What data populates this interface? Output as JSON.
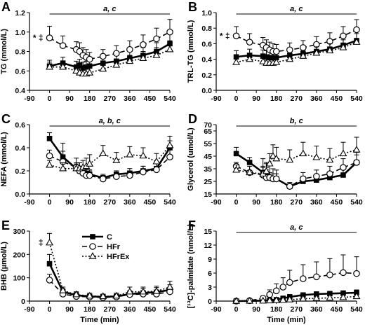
{
  "chart_data": [
    {
      "panel": "A",
      "type": "line",
      "ylabel": "TG (mmol/L)",
      "ylim": [
        0.4,
        1.2
      ],
      "yticks": [
        "0.4",
        "0.6",
        "0.8",
        "1.0",
        "1.2"
      ],
      "xlim": [
        -90,
        540
      ],
      "xticks": [
        "-90",
        "0",
        "90",
        "180",
        "270",
        "360",
        "450",
        "540"
      ],
      "xlabel": "",
      "significance": "a, c",
      "marker": "* ‡",
      "x": [
        0,
        60,
        120,
        135,
        150,
        165,
        180,
        240,
        300,
        360,
        420,
        480,
        540
      ],
      "series": [
        {
          "name": "C",
          "values": [
            0.65,
            0.68,
            0.64,
            0.66,
            0.63,
            0.64,
            0.65,
            0.68,
            0.7,
            0.73,
            0.76,
            0.8,
            0.88
          ],
          "err": [
            0.06,
            0.06,
            0.06,
            0.06,
            0.06,
            0.06,
            0.06,
            0.06,
            0.06,
            0.07,
            0.08,
            0.09,
            0.1
          ]
        },
        {
          "name": "HFr",
          "values": [
            0.94,
            0.86,
            0.82,
            0.8,
            0.76,
            0.74,
            0.72,
            0.75,
            0.78,
            0.82,
            0.87,
            0.93,
            1.0
          ],
          "err": [
            0.12,
            0.1,
            0.08,
            0.09,
            0.08,
            0.08,
            0.07,
            0.07,
            0.08,
            0.09,
            0.1,
            0.11,
            0.13
          ]
        },
        {
          "name": "HFrEx",
          "values": [
            0.64,
            0.64,
            0.6,
            0.58,
            0.57,
            0.57,
            0.58,
            0.62,
            0.66,
            0.7,
            0.73,
            0.76,
            0.82
          ],
          "err": [
            0.05,
            0.05,
            0.05,
            0.05,
            0.05,
            0.05,
            0.05,
            0.05,
            0.06,
            0.06,
            0.07,
            0.08,
            0.09
          ]
        }
      ]
    },
    {
      "panel": "B",
      "type": "line",
      "ylabel": "TRL-TG (mmol/L)",
      "ylim": [
        0.0,
        1.0
      ],
      "yticks": [
        "0.0",
        "0.2",
        "0.4",
        "0.6",
        "0.8",
        "1.0"
      ],
      "xlim": [
        -90,
        540
      ],
      "xticks": [
        "-90",
        "0",
        "90",
        "180",
        "270",
        "360",
        "450",
        "540"
      ],
      "xlabel": "",
      "significance": "a, c",
      "marker": "* ‡",
      "x": [
        0,
        60,
        120,
        135,
        150,
        165,
        180,
        240,
        300,
        360,
        420,
        480,
        540
      ],
      "series": [
        {
          "name": "C",
          "values": [
            0.43,
            0.45,
            0.44,
            0.43,
            0.42,
            0.42,
            0.42,
            0.45,
            0.47,
            0.5,
            0.53,
            0.58,
            0.64
          ],
          "err": [
            0.08,
            0.08,
            0.08,
            0.08,
            0.08,
            0.08,
            0.08,
            0.08,
            0.08,
            0.09,
            0.1,
            0.11,
            0.12
          ]
        },
        {
          "name": "HFr",
          "values": [
            0.7,
            0.62,
            0.58,
            0.55,
            0.52,
            0.5,
            0.5,
            0.52,
            0.55,
            0.59,
            0.63,
            0.7,
            0.78
          ],
          "err": [
            0.12,
            0.11,
            0.1,
            0.1,
            0.1,
            0.1,
            0.09,
            0.09,
            0.09,
            0.1,
            0.11,
            0.12,
            0.13
          ]
        },
        {
          "name": "HFrEx",
          "values": [
            0.36,
            0.4,
            0.37,
            0.35,
            0.35,
            0.35,
            0.36,
            0.4,
            0.44,
            0.48,
            0.51,
            0.55,
            0.62
          ],
          "err": [
            0.05,
            0.05,
            0.05,
            0.05,
            0.05,
            0.05,
            0.05,
            0.06,
            0.07,
            0.08,
            0.09,
            0.1,
            0.11
          ]
        }
      ]
    },
    {
      "panel": "C",
      "type": "line",
      "ylabel": "NEFA (mmol/L)",
      "ylim": [
        0.0,
        0.6
      ],
      "yticks": [
        "0.0",
        "0.2",
        "0.4",
        "0.6"
      ],
      "xlim": [
        -90,
        540
      ],
      "xticks": [
        "-90",
        "0",
        "90",
        "180",
        "270",
        "360",
        "450",
        "540"
      ],
      "xlabel": "",
      "significance": "a, b, c",
      "marker": "",
      "x": [
        0,
        60,
        120,
        135,
        150,
        165,
        180,
        240,
        300,
        360,
        420,
        480,
        540
      ],
      "series": [
        {
          "name": "C",
          "values": [
            0.48,
            0.32,
            0.22,
            0.2,
            0.19,
            0.18,
            0.17,
            0.14,
            0.17,
            0.18,
            0.2,
            0.22,
            0.4
          ],
          "err": [
            0.05,
            0.05,
            0.04,
            0.04,
            0.04,
            0.04,
            0.04,
            0.03,
            0.03,
            0.04,
            0.04,
            0.05,
            0.06
          ]
        },
        {
          "name": "HFr",
          "values": [
            0.33,
            0.28,
            0.23,
            0.2,
            0.18,
            0.16,
            0.16,
            0.13,
            0.15,
            0.16,
            0.19,
            0.21,
            0.32
          ],
          "err": [
            0.05,
            0.16,
            0.08,
            0.07,
            0.06,
            0.05,
            0.04,
            0.03,
            0.04,
            0.04,
            0.05,
            0.06,
            0.08
          ]
        },
        {
          "name": "HFrEx",
          "values": [
            0.25,
            0.22,
            0.22,
            0.22,
            0.23,
            0.24,
            0.26,
            0.35,
            0.29,
            0.34,
            0.33,
            0.28,
            0.42
          ],
          "err": [
            0.04,
            0.05,
            0.05,
            0.05,
            0.06,
            0.07,
            0.08,
            0.07,
            0.07,
            0.07,
            0.07,
            0.07,
            0.08
          ]
        }
      ]
    },
    {
      "panel": "D",
      "type": "line",
      "ylabel": "Glycerol (umol/L)",
      "ylim": [
        15,
        70
      ],
      "yticks": [
        "15",
        "25",
        "35",
        "45",
        "55",
        "65",
        "70"
      ],
      "xlim": [
        -90,
        540
      ],
      "xticks": [
        "-90",
        "0",
        "90",
        "180",
        "270",
        "360",
        "450",
        "540"
      ],
      "xlabel": "",
      "significance": "b, c",
      "marker": "",
      "x": [
        0,
        60,
        120,
        135,
        150,
        165,
        180,
        240,
        300,
        360,
        420,
        480,
        540
      ],
      "series": [
        {
          "name": "C",
          "values": [
            47,
            40,
            32,
            30,
            28,
            27,
            27,
            21,
            25,
            26,
            28,
            30,
            40
          ],
          "err": [
            5,
            4,
            4,
            4,
            4,
            4,
            4,
            3,
            4,
            4,
            4,
            5,
            6
          ]
        },
        {
          "name": "HFr",
          "values": [
            37,
            32,
            30,
            28,
            28,
            27,
            27,
            21,
            27,
            29,
            31,
            36,
            40
          ],
          "err": [
            3,
            5,
            13,
            11,
            10,
            8,
            7,
            3,
            5,
            5,
            6,
            7,
            8
          ]
        },
        {
          "name": "HFrEx",
          "values": [
            34,
            32,
            31,
            33,
            39,
            45,
            43,
            42,
            47,
            44,
            42,
            47,
            50
          ],
          "err": [
            4,
            5,
            6,
            7,
            8,
            9,
            9,
            8,
            9,
            9,
            9,
            9,
            10
          ]
        }
      ]
    },
    {
      "panel": "E",
      "type": "line",
      "ylabel": "BHB (µmol/L)",
      "ylim": [
        0,
        300
      ],
      "yticks": [
        "0",
        "100",
        "200",
        "300"
      ],
      "xlim": [
        -90,
        540
      ],
      "xticks": [
        "-90",
        "0",
        "90",
        "180",
        "270",
        "360",
        "450",
        "540"
      ],
      "xlabel": "Time (min)",
      "significance": "",
      "marker": "‡",
      "legend": [
        "C",
        "HFr",
        "HFrEx"
      ],
      "x": [
        0,
        60,
        120,
        180,
        240,
        300,
        360,
        420,
        480,
        540
      ],
      "series": [
        {
          "name": "C",
          "values": [
            160,
            40,
            25,
            20,
            18,
            20,
            30,
            35,
            38,
            48
          ],
          "err": [
            40,
            15,
            12,
            10,
            10,
            10,
            15,
            18,
            20,
            22
          ]
        },
        {
          "name": "HFr",
          "values": [
            90,
            30,
            20,
            18,
            15,
            18,
            28,
            30,
            30,
            40
          ],
          "err": [
            25,
            12,
            10,
            10,
            10,
            10,
            12,
            15,
            15,
            20
          ]
        },
        {
          "name": "HFrEx",
          "values": [
            250,
            45,
            28,
            22,
            20,
            22,
            40,
            40,
            42,
            60
          ],
          "err": [
            40,
            15,
            12,
            12,
            10,
            12,
            20,
            20,
            22,
            25
          ]
        }
      ]
    },
    {
      "panel": "F",
      "type": "line",
      "ylabel": "[¹³C]-palmitate (nmol/L)",
      "ylim": [
        0,
        15
      ],
      "yticks": [
        "0",
        "3",
        "6",
        "9",
        "12",
        "15"
      ],
      "xlim": [
        -90,
        540
      ],
      "xticks": [
        "-90",
        "0",
        "90",
        "180",
        "270",
        "360",
        "450",
        "540"
      ],
      "xlabel": "Time (min)",
      "significance": "a, c",
      "marker": "",
      "x": [
        0,
        60,
        120,
        150,
        180,
        210,
        240,
        300,
        360,
        420,
        480,
        540
      ],
      "series": [
        {
          "name": "C",
          "values": [
            0,
            0.05,
            0.1,
            0.2,
            0.3,
            0.6,
            0.9,
            1.3,
            1.5,
            1.6,
            1.7,
            1.8
          ],
          "err": [
            0.05,
            0.05,
            0.1,
            0.2,
            0.3,
            0.4,
            0.5,
            0.5,
            0.5,
            0.5,
            0.5,
            0.6
          ]
        },
        {
          "name": "HFr",
          "values": [
            0,
            0.1,
            0.6,
            1.4,
            2.2,
            3.0,
            4.0,
            4.8,
            5.2,
            5.6,
            6.1,
            5.9
          ],
          "err": [
            0.1,
            0.2,
            0.5,
            1.0,
            1.5,
            2.0,
            2.6,
            3.0,
            3.2,
            3.5,
            3.8,
            3.6
          ]
        },
        {
          "name": "HFrEx",
          "values": [
            0,
            0.02,
            0.05,
            0.1,
            0.15,
            0.2,
            0.3,
            0.5,
            0.6,
            0.7,
            0.8,
            1.0
          ],
          "err": [
            0.02,
            0.03,
            0.05,
            0.1,
            0.1,
            0.15,
            0.2,
            0.3,
            0.3,
            0.4,
            0.4,
            0.5
          ]
        }
      ]
    }
  ]
}
